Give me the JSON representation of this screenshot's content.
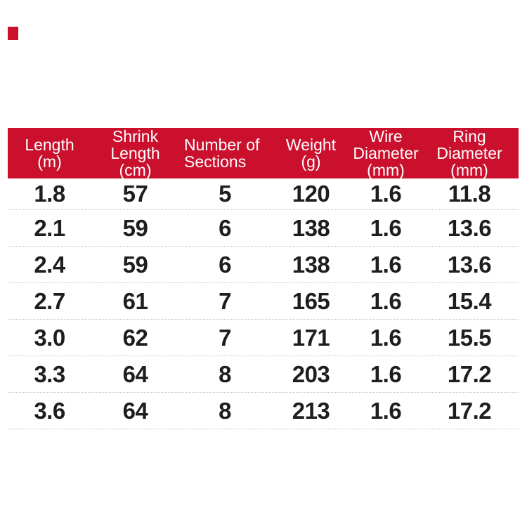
{
  "style": {
    "header_bg": "#cb102e",
    "header_text": "#ffffff",
    "body_text": "#1e1e1e",
    "divider": "#c4c4c4",
    "page_bg": "#ffffff",
    "accent_mark": "#cb102e"
  },
  "chart_data": {
    "type": "table",
    "title": "",
    "columns": [
      {
        "id": "length",
        "lines": [
          "Length",
          "(m)"
        ]
      },
      {
        "id": "shrink-length",
        "lines": [
          "Shrink",
          "Length",
          "(cm)"
        ]
      },
      {
        "id": "number-of-sections",
        "lines": [
          "Number of",
          "Sections"
        ]
      },
      {
        "id": "weight",
        "lines": [
          "Weight",
          "(g)"
        ]
      },
      {
        "id": "wire-diameter",
        "lines": [
          "Wire",
          "Diameter",
          "(mm)"
        ]
      },
      {
        "id": "ring-diameter",
        "lines": [
          "Ring",
          "Diameter",
          "(mm)"
        ]
      }
    ],
    "rows": [
      [
        "1.8",
        "57",
        "5",
        "120",
        "1.6",
        "11.8"
      ],
      [
        "2.1",
        "59",
        "6",
        "138",
        "1.6",
        "13.6"
      ],
      [
        "2.4",
        "59",
        "6",
        "138",
        "1.6",
        "13.6"
      ],
      [
        "2.7",
        "61",
        "7",
        "165",
        "1.6",
        "15.4"
      ],
      [
        "3.0",
        "62",
        "7",
        "171",
        "1.6",
        "15.5"
      ],
      [
        "3.3",
        "64",
        "8",
        "203",
        "1.6",
        "17.2"
      ],
      [
        "3.6",
        "64",
        "8",
        "213",
        "1.6",
        "17.2"
      ]
    ]
  }
}
